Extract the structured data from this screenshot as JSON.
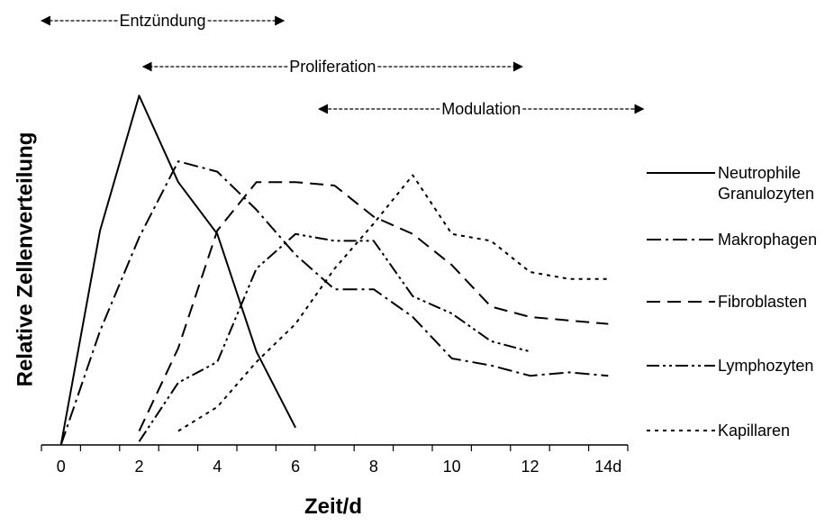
{
  "chart_data": {
    "type": "line",
    "title": "",
    "xlabel": "Zeit/d",
    "ylabel": "Relative Zellenverteilung",
    "xlim": [
      -0.5,
      14.5
    ],
    "ylim": [
      0,
      100
    ],
    "grid": false,
    "legend_position": "right",
    "x_tick_labels": [
      {
        "x": 0,
        "label": "0"
      },
      {
        "x": 2,
        "label": "2"
      },
      {
        "x": 4,
        "label": "4"
      },
      {
        "x": 6,
        "label": "6"
      },
      {
        "x": 8,
        "label": "8"
      },
      {
        "x": 10,
        "label": "10"
      },
      {
        "x": 12,
        "label": "12"
      },
      {
        "x": 14,
        "label": "14d"
      }
    ],
    "phases": [
      {
        "label": "Entzündung",
        "start": -0.5,
        "end": 5.7,
        "level": 1
      },
      {
        "label": "Proliferation",
        "start": 2.1,
        "end": 11.8,
        "level": 2
      },
      {
        "label": "Modulation",
        "start": 6.6,
        "end": 14.9,
        "level": 3
      }
    ],
    "series": [
      {
        "name": "Neutrophile Granulozyten",
        "dash": "solid",
        "x": [
          0,
          1,
          2,
          3,
          4,
          5,
          6
        ],
        "y": [
          0,
          62,
          101,
          76,
          61,
          27,
          5
        ]
      },
      {
        "name": "Makrophagen",
        "dash": "dashdot",
        "x": [
          0,
          1,
          2,
          3,
          4,
          5,
          6,
          7,
          8,
          9,
          10,
          11,
          12,
          13,
          14
        ],
        "y": [
          0,
          33,
          60,
          82,
          79,
          68,
          55,
          45,
          45,
          37,
          25,
          23,
          20,
          21,
          20
        ]
      },
      {
        "name": "Fibroblasten",
        "dash": "longdash",
        "x": [
          2,
          3,
          4,
          5,
          6,
          7,
          8,
          9,
          10,
          11,
          12,
          13,
          14
        ],
        "y": [
          4,
          28,
          62,
          76,
          76,
          75,
          66,
          61,
          52,
          40,
          37,
          36,
          35
        ]
      },
      {
        "name": "Lymphozyten",
        "dash": "dashdotdot",
        "x": [
          2,
          3,
          4,
          5,
          6,
          7,
          8,
          9,
          10,
          11,
          12
        ],
        "y": [
          1,
          18,
          24,
          51,
          61,
          59,
          59,
          43,
          38,
          30,
          27
        ]
      },
      {
        "name": "Kapillaren",
        "dash": "dotted",
        "x": [
          3,
          4,
          5,
          6,
          7,
          8,
          9,
          10,
          11,
          12,
          13,
          14
        ],
        "y": [
          4,
          11,
          24,
          35,
          51,
          64,
          78,
          61,
          59,
          50,
          48,
          48
        ]
      }
    ],
    "legend": [
      {
        "label_lines": [
          "Neutrophile",
          "Granulozyten"
        ]
      },
      {
        "label_lines": [
          "Makrophagen"
        ]
      },
      {
        "label_lines": [
          "Fibroblasten"
        ]
      },
      {
        "label_lines": [
          "Lymphozyten"
        ]
      },
      {
        "label_lines": [
          "Kapillaren"
        ]
      }
    ]
  }
}
